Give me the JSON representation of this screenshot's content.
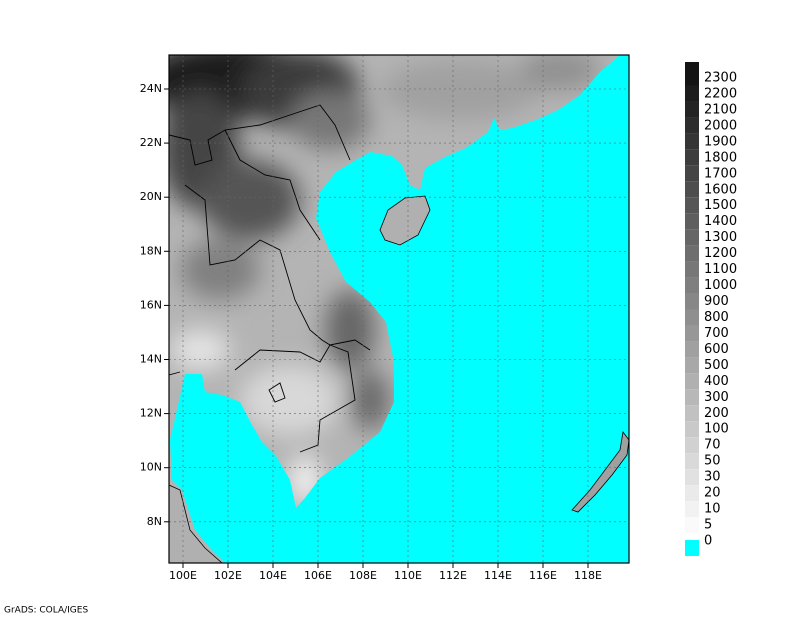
{
  "map": {
    "lat_labels": [
      "24N",
      "22N",
      "20N",
      "18N",
      "16N",
      "14N",
      "12N",
      "10N",
      "8N"
    ],
    "lon_labels": [
      "100E",
      "102E",
      "104E",
      "106E",
      "108E",
      "110E",
      "112E",
      "114E",
      "116E",
      "118E"
    ],
    "colorbar_labels": [
      "2300",
      "2200",
      "2100",
      "2000",
      "1900",
      "1800",
      "1700",
      "1600",
      "1500",
      "1400",
      "1300",
      "1200",
      "1100",
      "1000",
      "900",
      "800",
      "700",
      "600",
      "500",
      "400",
      "300",
      "200",
      "100",
      "70",
      "50",
      "30",
      "20",
      "10",
      "5",
      "0"
    ],
    "footer": "GrADS: COLA/IGES"
  }
}
